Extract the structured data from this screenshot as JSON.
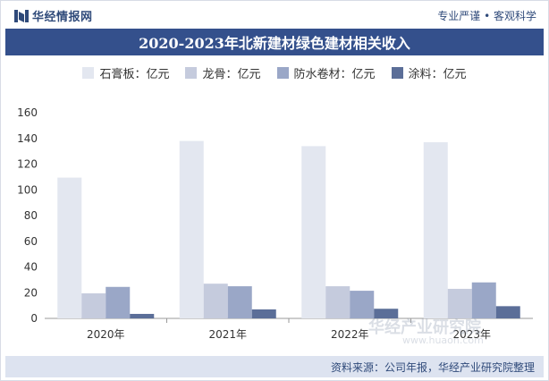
{
  "header": {
    "logo_text": "华经情报网",
    "slogan": "专业严谨 • 客观科学"
  },
  "colors": {
    "title_bg": "#34508c",
    "footer_bg": "#dde3f0"
  },
  "chart_data": {
    "type": "bar",
    "title": "2020-2023年北新建材绿色建材相关收入",
    "categories": [
      "2020年",
      "2021年",
      "2022年",
      "2023年"
    ],
    "series": [
      {
        "name": "石膏板：亿元",
        "color": "#e3e7f0",
        "values": [
          109.5,
          138,
          134,
          137
        ]
      },
      {
        "name": "龙骨：亿元",
        "color": "#c5cbdd",
        "values": [
          19.5,
          27,
          25,
          23
        ]
      },
      {
        "name": "防水卷材：亿元",
        "color": "#9aa7c7",
        "values": [
          24.5,
          25,
          21.5,
          28
        ]
      },
      {
        "name": "涂料：亿元",
        "color": "#5b6e98",
        "values": [
          3.5,
          7,
          7.5,
          9.5
        ]
      }
    ],
    "ylim": [
      0,
      160
    ],
    "yticks": [
      0,
      20,
      40,
      60,
      80,
      100,
      120,
      140,
      160
    ],
    "grid": false,
    "legend": "top-center"
  },
  "footer": {
    "source": "资料来源：公司年报，华经产业研究院整理"
  },
  "watermark": {
    "text": "华经产业研究院",
    "url": "www.huaon.com"
  }
}
